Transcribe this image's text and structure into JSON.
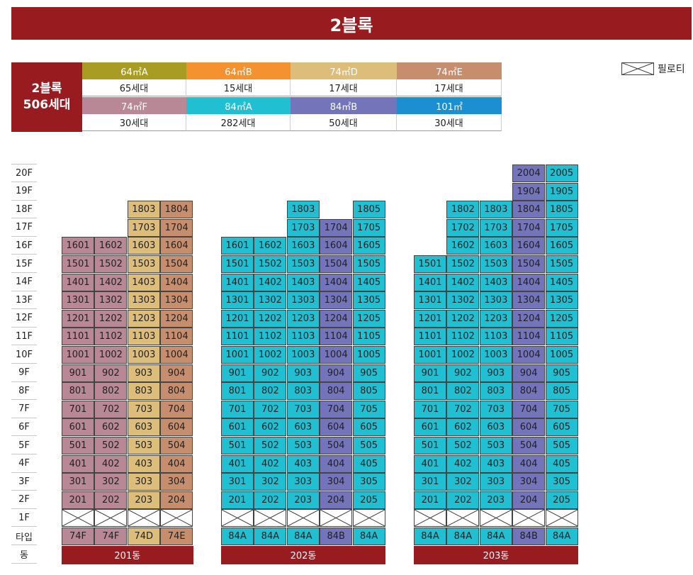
{
  "title": "2블록",
  "legend": {
    "block_line1": "2블록",
    "block_line2": "506세대",
    "types": [
      {
        "name": "64㎡A",
        "count": "65세대",
        "color": "#a89c23"
      },
      {
        "name": "64㎡B",
        "count": "15세대",
        "color": "#f3922f"
      },
      {
        "name": "74㎡D",
        "count": "17세대",
        "color": "#dcbd7a"
      },
      {
        "name": "74㎡E",
        "count": "17세대",
        "color": "#c78e6e"
      },
      {
        "name": "74㎡F",
        "count": "30세대",
        "color": "#b88896"
      },
      {
        "name": "84㎡A",
        "count": "282세대",
        "color": "#20bfd1"
      },
      {
        "name": "84㎡B",
        "count": "50세대",
        "color": "#7474bb"
      },
      {
        "name": "101㎡",
        "count": "30세대",
        "color": "#1b8fd0"
      }
    ],
    "piloti_label": "필로티"
  },
  "type_colors": {
    "74F": "#b88896",
    "74D": "#dcbd7a",
    "74E": "#c78e6e",
    "84A": "#20bfd1",
    "84B": "#7474bb"
  },
  "floors": [
    "20F",
    "19F",
    "18F",
    "17F",
    "16F",
    "15F",
    "14F",
    "13F",
    "12F",
    "11F",
    "10F",
    "9F",
    "8F",
    "7F",
    "6F",
    "5F",
    "4F",
    "3F",
    "2F",
    "1F"
  ],
  "type_row_label": "타입",
  "dong_row_label": "동",
  "buildings": [
    {
      "name": "201동",
      "lines": [
        {
          "line": "01",
          "type": "74F",
          "top": 16
        },
        {
          "line": "02",
          "type": "74F",
          "top": 16
        },
        {
          "line": "03",
          "type": "74D",
          "top": 18
        },
        {
          "line": "04",
          "type": "74E",
          "top": 18
        }
      ]
    },
    {
      "name": "202동",
      "lines": [
        {
          "line": "01",
          "type": "84A",
          "top": 16
        },
        {
          "line": "02",
          "type": "84A",
          "top": 16
        },
        {
          "line": "03",
          "type": "84A",
          "top": 18
        },
        {
          "line": "04",
          "type": "84B",
          "top": 17
        },
        {
          "line": "05",
          "type": "84A",
          "top": 18
        }
      ]
    },
    {
      "name": "203동",
      "lines": [
        {
          "line": "01",
          "type": "84A",
          "top": 15
        },
        {
          "line": "02",
          "type": "84A",
          "top": 18
        },
        {
          "line": "03",
          "type": "84A",
          "top": 18
        },
        {
          "line": "04",
          "type": "84B",
          "top": 20
        },
        {
          "line": "05",
          "type": "84A",
          "top": 20
        }
      ]
    }
  ]
}
